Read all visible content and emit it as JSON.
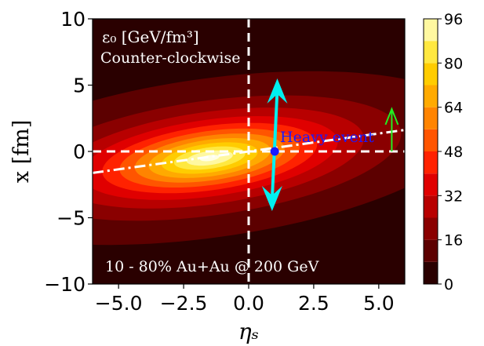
{
  "chart_data": {
    "type": "heatmap",
    "title": "",
    "annotation_line1": "ε₀ [GeV/fm³]",
    "annotation_line2": "Counter-clockwise",
    "annotation_bottom": "10 - 80% Au+Au @ 200 GeV",
    "heavy_event_label": "Heavy event",
    "xlabel": "ηₛ",
    "ylabel": "x [fm]",
    "xlim": [
      -6,
      6
    ],
    "ylim": [
      -10,
      10
    ],
    "x_ticks": [
      -5.0,
      -2.5,
      0.0,
      2.5,
      5.0
    ],
    "x_tick_labels": [
      "−5.0",
      "−2.5",
      "0.0",
      "2.5",
      "5.0"
    ],
    "y_ticks": [
      10,
      5,
      0,
      -5,
      -10
    ],
    "y_tick_labels": [
      "10",
      "5",
      "0",
      "−5",
      "−10"
    ],
    "colorbar": {
      "range": [
        0,
        96
      ],
      "ticks": [
        96,
        80,
        64,
        48,
        32,
        16,
        0
      ],
      "tick_labels": [
        "96",
        "80",
        "64",
        "48",
        "32",
        "16",
        "0"
      ],
      "levels": [
        0,
        8,
        16,
        24,
        32,
        40,
        48,
        56,
        64,
        72,
        80,
        88,
        96
      ],
      "colors": [
        "#2a0000",
        "#5c0000",
        "#8a0000",
        "#b80000",
        "#e00000",
        "#ff2200",
        "#ff5500",
        "#ff8400",
        "#ffaa00",
        "#ffcc00",
        "#ffe840",
        "#fff8a0",
        "#ffffe6"
      ]
    },
    "energy_density": {
      "center": [
        -1.5,
        -0.5
      ],
      "sigma_along_tilt": 3.6,
      "sigma_across_tilt": 1.05,
      "tilt_slope": 0.27,
      "peak": 96,
      "flatness_power": 1.3
    },
    "tilt_line": {
      "slope": 0.27,
      "intercept": 1.55
    },
    "heavy_event_point": [
      1.0,
      0.0
    ],
    "arrow_up_tip": [
      1.1,
      5.5
    ],
    "arrow_down_tip": [
      0.9,
      -4.5
    ],
    "green_arrow": {
      "x": 5.5,
      "y_from": 0.0,
      "y_to": 3.2
    },
    "vline_x": 0.0,
    "hline_y": 0.0,
    "colors": {
      "background_field": "#2a0000",
      "dashed_lines": "#ffffff",
      "arrow": "#00f0f0",
      "point": "#1a1aff",
      "green_arrow": "#22ee22"
    }
  }
}
